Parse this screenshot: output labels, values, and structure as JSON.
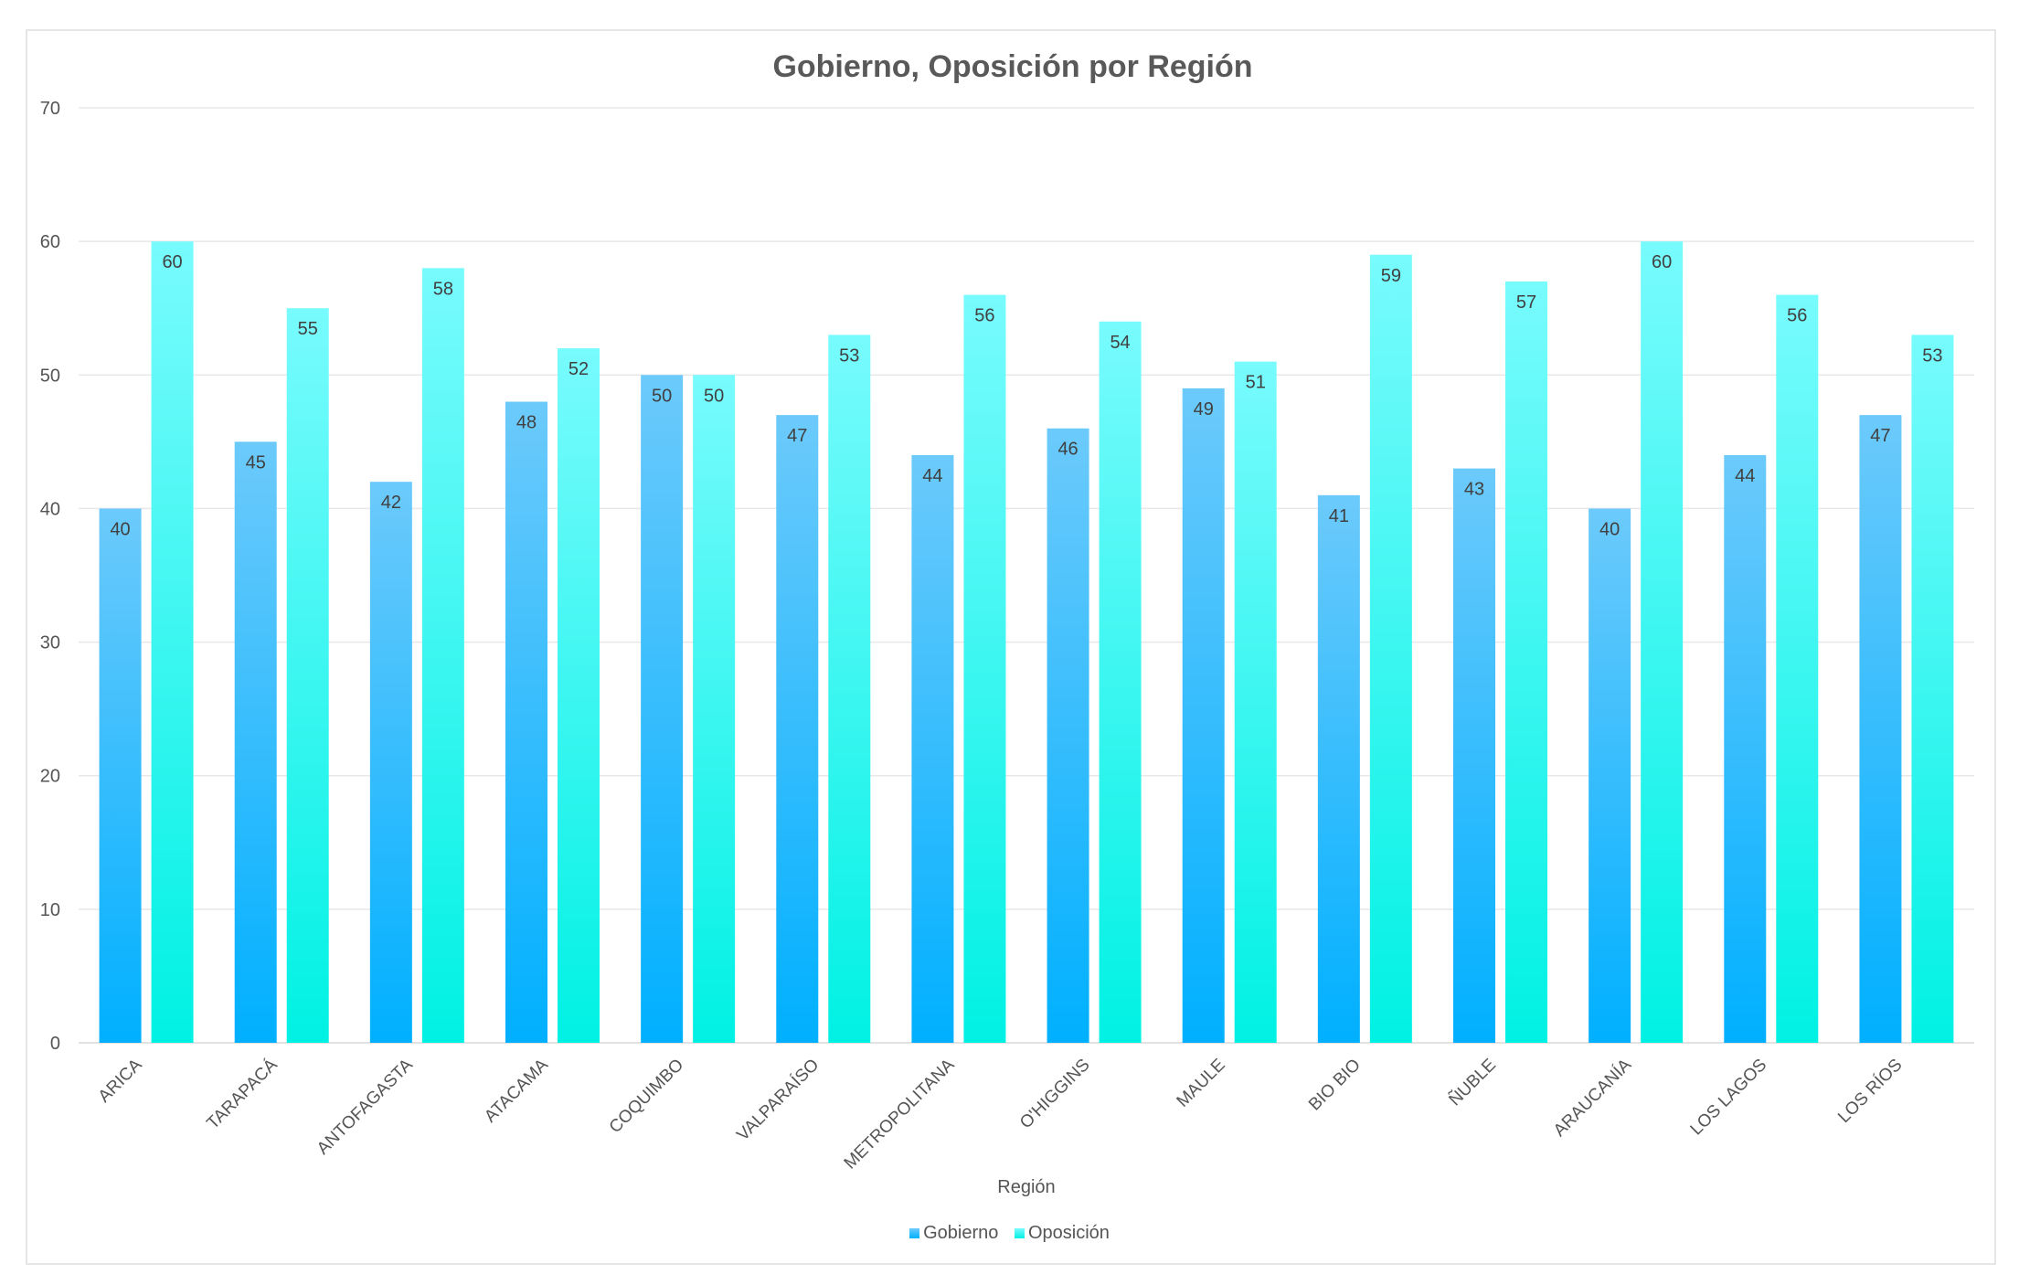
{
  "chart_data": {
    "type": "bar",
    "title": "Gobierno, Oposición por Región",
    "xlabel": "Región",
    "ylabel": "",
    "ylim": [
      0,
      70
    ],
    "yticks": [
      0,
      10,
      20,
      30,
      40,
      50,
      60,
      70
    ],
    "grid": true,
    "legend_position": "bottom",
    "categories": [
      "ARICA",
      "TARAPACÁ",
      "ANTOFAGASTA",
      "ATACAMA",
      "COQUIMBO",
      "VALPARAÍSO",
      "METROPOLITANA",
      "O'HIGGINS",
      "MAULE",
      "BIO BIO",
      "ÑUBLE",
      "ARAUCANÍA",
      "LOS LAGOS",
      "LOS RÍOS"
    ],
    "series": [
      {
        "name": "Gobierno",
        "values": [
          40,
          45,
          42,
          48,
          50,
          47,
          44,
          46,
          49,
          41,
          43,
          40,
          44,
          47
        ],
        "color_top": "#6ccafb",
        "color_bottom": "#00b0ff"
      },
      {
        "name": "Oposición",
        "values": [
          60,
          55,
          58,
          52,
          50,
          53,
          56,
          54,
          51,
          59,
          57,
          60,
          56,
          53
        ],
        "color_top": "#78fbfd",
        "color_bottom": "#00f1e4"
      }
    ]
  }
}
